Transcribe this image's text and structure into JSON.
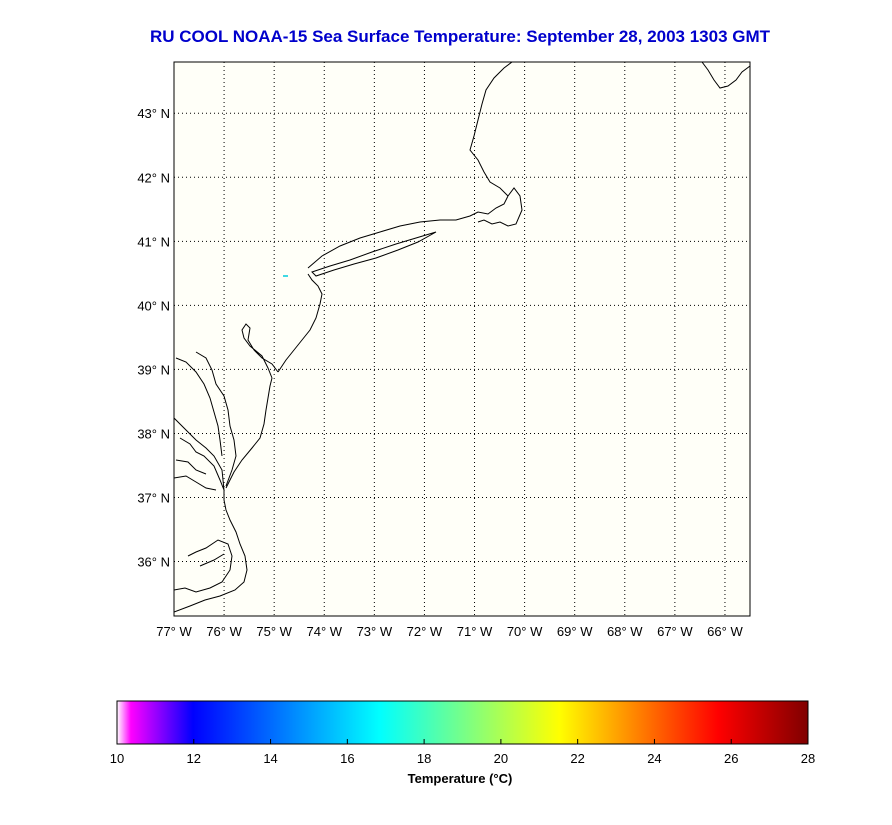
{
  "title": "RU COOL  NOAA-15  Sea Surface Temperature:  September 28, 2003 1303 GMT",
  "map": {
    "lon_range": [
      -77,
      -65.5
    ],
    "lat_range": [
      35.15,
      43.8
    ],
    "lat_ticks": [
      {
        "value": 43,
        "label": "43° N"
      },
      {
        "value": 42,
        "label": "42° N"
      },
      {
        "value": 41,
        "label": "41° N"
      },
      {
        "value": 40,
        "label": "40° N"
      },
      {
        "value": 39,
        "label": "39° N"
      },
      {
        "value": 38,
        "label": "38° N"
      },
      {
        "value": 37,
        "label": "37° N"
      },
      {
        "value": 36,
        "label": "36° N"
      }
    ],
    "lon_ticks": [
      {
        "value": -77,
        "label": "77° W"
      },
      {
        "value": -76,
        "label": "76° W"
      },
      {
        "value": -75,
        "label": "75° W"
      },
      {
        "value": -74,
        "label": "74° W"
      },
      {
        "value": -73,
        "label": "73° W"
      },
      {
        "value": -72,
        "label": "72° W"
      },
      {
        "value": -71,
        "label": "71° W"
      },
      {
        "value": -70,
        "label": "70° W"
      },
      {
        "value": -69,
        "label": "69° W"
      },
      {
        "value": -68,
        "label": "68° W"
      },
      {
        "value": -67,
        "label": "67° W"
      },
      {
        "value": -66,
        "label": "66° W"
      }
    ],
    "grid": true,
    "background_color": "#fffff8",
    "coastline_color": "#000000"
  },
  "colorbar": {
    "label": "Temperature (°C)",
    "range": [
      10,
      28
    ],
    "ticks": [
      "10",
      "12",
      "14",
      "16",
      "18",
      "20",
      "22",
      "24",
      "26",
      "28"
    ],
    "colors": [
      "#ff00ff",
      "#0000ff",
      "#00ffff",
      "#ffff00",
      "#ff0000",
      "#800000"
    ]
  }
}
